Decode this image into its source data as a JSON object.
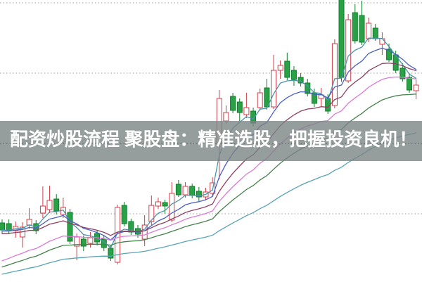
{
  "overlay": {
    "text": "配资炒股流程 聚股盘：精准选股，把握投资良机！",
    "band_color": "rgba(122,133,133,0.80)",
    "text_color": "#ffffff"
  },
  "chart_data": {
    "type": "candlestick",
    "title": "",
    "xlabel": "",
    "ylabel": "",
    "x_count": 62,
    "grid": true,
    "legend_position": "none",
    "price_axis": {
      "min": 0,
      "max": 40,
      "gridline_values": [
        9.7,
        19.7,
        29.7,
        39.7
      ],
      "labels_visible": false
    },
    "candles_format": [
      "open",
      "high",
      "low",
      "close"
    ],
    "candles": [
      [
        8.4,
        8.9,
        6.9,
        7.4
      ],
      [
        8.3,
        8.9,
        6.8,
        7.3
      ],
      [
        7.3,
        8.6,
        6.3,
        7.9
      ],
      [
        6.4,
        8.5,
        4.9,
        7.8
      ],
      [
        8.1,
        10.5,
        7.6,
        8.9
      ],
      [
        8.3,
        8.8,
        6.8,
        7.3
      ],
      [
        9.8,
        13.6,
        9.1,
        10.8
      ],
      [
        10.3,
        13.7,
        9.8,
        11.6
      ],
      [
        11.8,
        12.5,
        9.6,
        10.1
      ],
      [
        9.6,
        12.0,
        9.1,
        10.6
      ],
      [
        9.9,
        10.4,
        5.4,
        5.8
      ],
      [
        5.1,
        6.9,
        3.1,
        6.4
      ],
      [
        6.1,
        6.6,
        4.4,
        5.1
      ],
      [
        5.5,
        7.1,
        4.9,
        6.3
      ],
      [
        6.9,
        7.4,
        5.2,
        5.7
      ],
      [
        6.1,
        6.6,
        4.4,
        4.9
      ],
      [
        4.8,
        5.3,
        3.0,
        3.4
      ],
      [
        2.8,
        11.0,
        2.5,
        10.6
      ],
      [
        10.9,
        11.4,
        7.9,
        8.3
      ],
      [
        8.6,
        9.0,
        6.7,
        7.1
      ],
      [
        7.6,
        8.1,
        6.3,
        6.8
      ],
      [
        6.1,
        9.5,
        5.1,
        8.1
      ],
      [
        8.6,
        12.3,
        8.1,
        10.9
      ],
      [
        10.8,
        12.0,
        10.4,
        11.4
      ],
      [
        11.3,
        11.7,
        9.7,
        10.8
      ],
      [
        8.8,
        14.2,
        8.5,
        12.6
      ],
      [
        13.9,
        14.5,
        12.1,
        12.4
      ],
      [
        12.4,
        14.2,
        12.0,
        13.6
      ],
      [
        13.6,
        14.0,
        11.9,
        12.3
      ],
      [
        12.9,
        13.5,
        11.5,
        12.1
      ],
      [
        12.1,
        13.4,
        11.7,
        12.8
      ],
      [
        12.6,
        14.9,
        12.2,
        14.1
      ],
      [
        19.6,
        27.3,
        14.6,
        26.1
      ],
      [
        22.9,
        25.1,
        22.5,
        24.1
      ],
      [
        26.4,
        26.9,
        24.0,
        24.4
      ],
      [
        25.6,
        26.1,
        22.9,
        24.1
      ],
      [
        23.8,
        26.9,
        23.3,
        24.8
      ],
      [
        24.3,
        24.8,
        22.1,
        22.6
      ],
      [
        24.8,
        27.5,
        24.4,
        26.9
      ],
      [
        27.6,
        28.9,
        24.5,
        24.9
      ],
      [
        24.9,
        32.3,
        24.6,
        30.1
      ],
      [
        30.1,
        31.5,
        28.9,
        30.8
      ],
      [
        31.4,
        32.6,
        28.7,
        29.1
      ],
      [
        30.1,
        30.7,
        27.9,
        28.8
      ],
      [
        29.1,
        29.7,
        27.8,
        28.3
      ],
      [
        28.3,
        28.9,
        26.4,
        26.8
      ],
      [
        26.9,
        27.5,
        24.9,
        25.4
      ],
      [
        26.1,
        27.6,
        24.9,
        26.6
      ],
      [
        26.1,
        26.7,
        23.9,
        24.3
      ],
      [
        25.1,
        34.5,
        24.7,
        33.9
      ],
      [
        40.9,
        40.9,
        28.5,
        29.1
      ],
      [
        28.6,
        38.1,
        28.3,
        37.3
      ],
      [
        38.3,
        39.5,
        33.9,
        34.3
      ],
      [
        37.9,
        40.0,
        33.7,
        34.1
      ],
      [
        34.6,
        37.6,
        34.1,
        36.8
      ],
      [
        36.1,
        36.7,
        34.3,
        34.6
      ],
      [
        33.8,
        35.5,
        32.3,
        34.6
      ],
      [
        33.1,
        33.9,
        31.3,
        31.6
      ],
      [
        32.3,
        32.9,
        29.7,
        30.1
      ],
      [
        30.4,
        31.1,
        28.5,
        28.9
      ],
      [
        29.1,
        29.7,
        26.9,
        27.3
      ],
      [
        27.2,
        28.8,
        26.0,
        28.0
      ]
    ],
    "moving_averages": [
      {
        "name": "teal-fast",
        "color": "#4d93aa",
        "alpha": 0.38,
        "seed": 7.4
      },
      {
        "name": "blue",
        "color": "#4a5fc4",
        "alpha": 0.2,
        "seed": 7.2
      },
      {
        "name": "maroon",
        "color": "#8f3f63",
        "alpha": 0.12,
        "seed": 6.8
      },
      {
        "name": "violet",
        "color": "#da7ad6",
        "alpha": 0.085,
        "seed": 2.6
      },
      {
        "name": "green",
        "color": "#44824c",
        "alpha": 0.06,
        "seed": 1.8
      },
      {
        "name": "light-teal",
        "color": "#58a4b2",
        "alpha": 0.033,
        "seed": 0.9
      }
    ],
    "colors": {
      "up_body": "#ffffff",
      "up_stroke": "#cf3e48",
      "down_body": "#2aa146",
      "down_stroke": "#0d7d28",
      "grid": "#9c9c9c",
      "background": "#ffffff"
    }
  }
}
